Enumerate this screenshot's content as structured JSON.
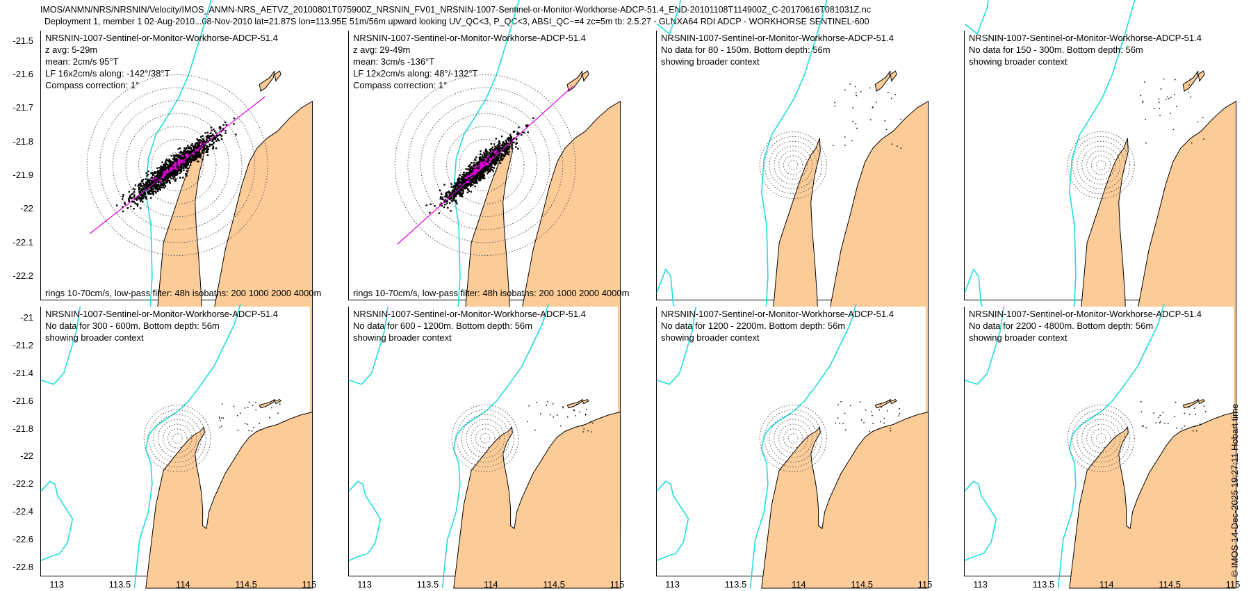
{
  "header": {
    "line1": "IMOS/ANMN/NRS/NRSNIN/Velocity/IMOS_ANMN-NRS_AETVZ_20100801T075900Z_NRSNIN_FV01_NRSNIN-1007-Sentinel-or-Monitor-Workhorse-ADCP-51.4_END-20101108T114900Z_C-20170616T081031Z.nc",
    "line2": "Deployment 1, member 1 02-Aug-2010...08-Nov-2010 lat=21.87S lon=113.95E 51m/56m upward looking UV_QC<3, P_QC<3, ABSI_QC~=4 zc=5m tb: 2.5.27 - GLNXA64 RDI ADCP - WORKHORSE SENTINEL-600"
  },
  "colors": {
    "land": "#fccc98",
    "isobath": "#22dcdc",
    "fit": "#e000e0",
    "scatter": "#000000"
  },
  "panels": [
    {
      "title": "NRSNIN-1007-Sentinel-or-Monitor-Workhorse-ADCP-51.4",
      "lines": [
        "z avg: 5-29m",
        "mean: 2cm/s 95°T",
        "LF 16x2cm/s along: -142°/38°T",
        "Compass correction: 1°"
      ],
      "footer": "rings 10-70cm/s, low-pass filter: 48h isobaths: 200 1000 2000 4000m",
      "has_data": true
    },
    {
      "title": "NRSNIN-1007-Sentinel-or-Monitor-Workhorse-ADCP-51.4",
      "lines": [
        "z avg: 29-49m",
        "mean: 3cm/s -136°T",
        "LF 12x2cm/s along: 48°/-132°T",
        "Compass correction: 1°"
      ],
      "footer": "rings 10-70cm/s, low-pass filter: 48h isobaths: 200 1000 2000 4000m",
      "has_data": true
    },
    {
      "title": "NRSNIN-1007-Sentinel-or-Monitor-Workhorse-ADCP-51.4",
      "lines": [
        "No data for 80 - 150m. Bottom depth: 56m",
        "showing broader context"
      ],
      "footer": "",
      "has_data": false
    },
    {
      "title": "NRSNIN-1007-Sentinel-or-Monitor-Workhorse-ADCP-51.4",
      "lines": [
        "No data for 150 - 300m. Bottom depth: 56m",
        "showing broader context"
      ],
      "footer": "",
      "has_data": false
    },
    {
      "title": "NRSNIN-1007-Sentinel-or-Monitor-Workhorse-ADCP-51.4",
      "lines": [
        "No data for 300 - 600m. Bottom depth: 56m",
        "showing broader context"
      ],
      "footer": "",
      "has_data": false
    },
    {
      "title": "NRSNIN-1007-Sentinel-or-Monitor-Workhorse-ADCP-51.4",
      "lines": [
        "No data for 600 - 1200m. Bottom depth: 56m",
        "showing broader context"
      ],
      "footer": "",
      "has_data": false
    },
    {
      "title": "NRSNIN-1007-Sentinel-or-Monitor-Workhorse-ADCP-51.4",
      "lines": [
        "No data for 1200 - 2200m. Bottom depth: 56m",
        "showing broader context"
      ],
      "footer": "",
      "has_data": false
    },
    {
      "title": "NRSNIN-1007-Sentinel-or-Monitor-Workhorse-ADCP-51.4",
      "lines": [
        "No data for 2200 - 4800m. Bottom depth: 56m",
        "showing broader context"
      ],
      "footer": "",
      "has_data": false
    }
  ],
  "axes": {
    "top_y_ticks": [
      "-21.5",
      "-21.6",
      "-21.7",
      "-21.8",
      "-21.9",
      "-22",
      "-22.1",
      "-22.2"
    ],
    "top_y_values": [
      -21.5,
      -21.6,
      -21.7,
      -21.8,
      -21.9,
      -22.0,
      -22.1,
      -22.2
    ],
    "bottom_y_ticks": [
      "-21",
      "-21.2",
      "-21.4",
      "-21.6",
      "-21.8",
      "-22",
      "-22.2",
      "-22.4",
      "-22.6",
      "-22.8"
    ],
    "bottom_y_values": [
      -21.0,
      -21.2,
      -21.4,
      -21.6,
      -21.8,
      -22.0,
      -22.2,
      -22.4,
      -22.6,
      -22.8
    ],
    "x_ticks": [
      "113",
      "113.5",
      "114",
      "114.5",
      "115"
    ],
    "x_values": [
      113,
      113.5,
      114,
      114.5,
      115
    ]
  },
  "side_note": "© IMOS 14-Dec-2025 19:27:11 Hobart time"
}
